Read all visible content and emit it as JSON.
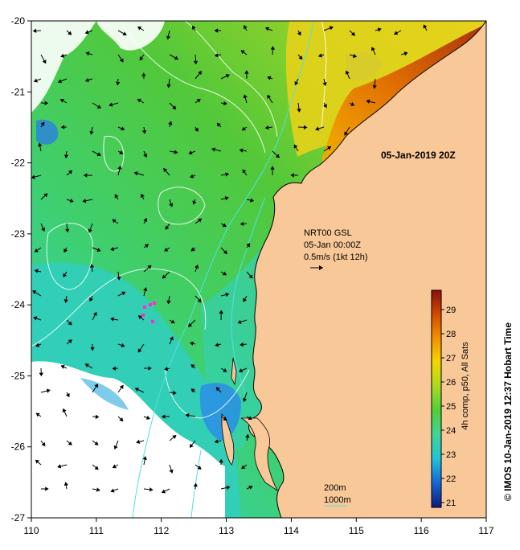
{
  "map": {
    "lon_range": [
      110,
      117
    ],
    "lat_range": [
      -27,
      -20
    ],
    "x_ticks": [
      "110",
      "111",
      "112",
      "113",
      "114",
      "115",
      "116",
      "117"
    ],
    "y_ticks": [
      "-20",
      "-21",
      "-22",
      "-23",
      "-24",
      "-25",
      "-26",
      "-27"
    ],
    "land_color": "#f9c898",
    "cloud_color": "#ffffff"
  },
  "annotations": {
    "date_title": "05-Jan-2019 20Z",
    "current_source": "NRT00 GSL",
    "current_time": "05-Jan 00:00Z",
    "current_scale": "0.5m/s (1kt 12h)",
    "contour_200": "200m",
    "contour_1000": "1000m"
  },
  "colorbar": {
    "range": [
      20.8,
      29.8
    ],
    "ticks": [
      "21",
      "22",
      "23",
      "24",
      "25",
      "26",
      "27",
      "28",
      "29"
    ],
    "label": "4h comp, p50, All Sats",
    "colors": [
      "#0b1b7a",
      "#1565d8",
      "#1ec3d8",
      "#3fd69a",
      "#4fcf3a",
      "#a5da1e",
      "#f2d800",
      "#f39200",
      "#d24a00",
      "#8b0f0f"
    ]
  },
  "credit": "© IMOS 10-Jan-2019 12:37 Hobart Time"
}
